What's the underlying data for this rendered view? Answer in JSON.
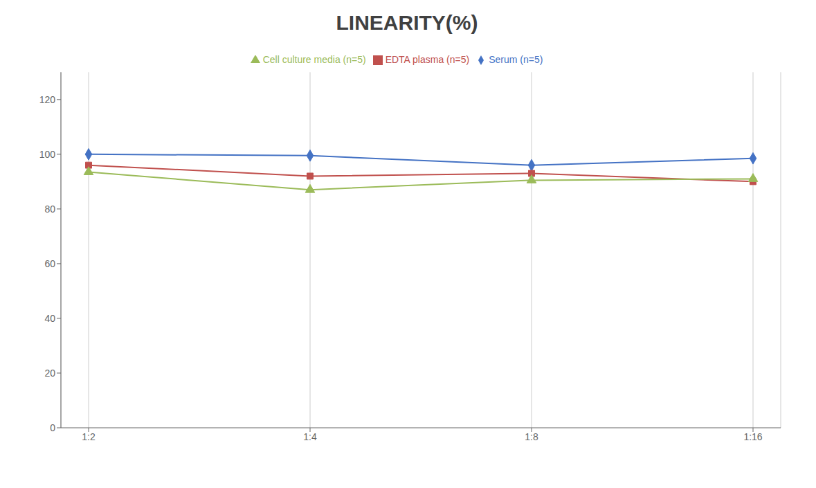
{
  "chart_data": {
    "type": "line",
    "title": "LINEARITY(%)",
    "categories": [
      "1:2",
      "1:4",
      "1:8",
      "1:16"
    ],
    "series": [
      {
        "name": "Serum (n=5)",
        "color": "#4472C4",
        "marker": "diamond",
        "values": [
          100,
          99.5,
          96,
          98.5
        ]
      },
      {
        "name": "EDTA plasma (n=5)",
        "color": "#C0504D",
        "marker": "square",
        "values": [
          96,
          92,
          93,
          90
        ]
      },
      {
        "name": "Cell culture media (n=5)",
        "color": "#9BBB59",
        "marker": "triangle",
        "values": [
          93.5,
          87,
          90.5,
          91
        ]
      }
    ],
    "ylim": [
      0,
      130
    ],
    "yticks": [
      0,
      20,
      40,
      60,
      80,
      100,
      120
    ],
    "grid": "x",
    "legend": "top"
  }
}
